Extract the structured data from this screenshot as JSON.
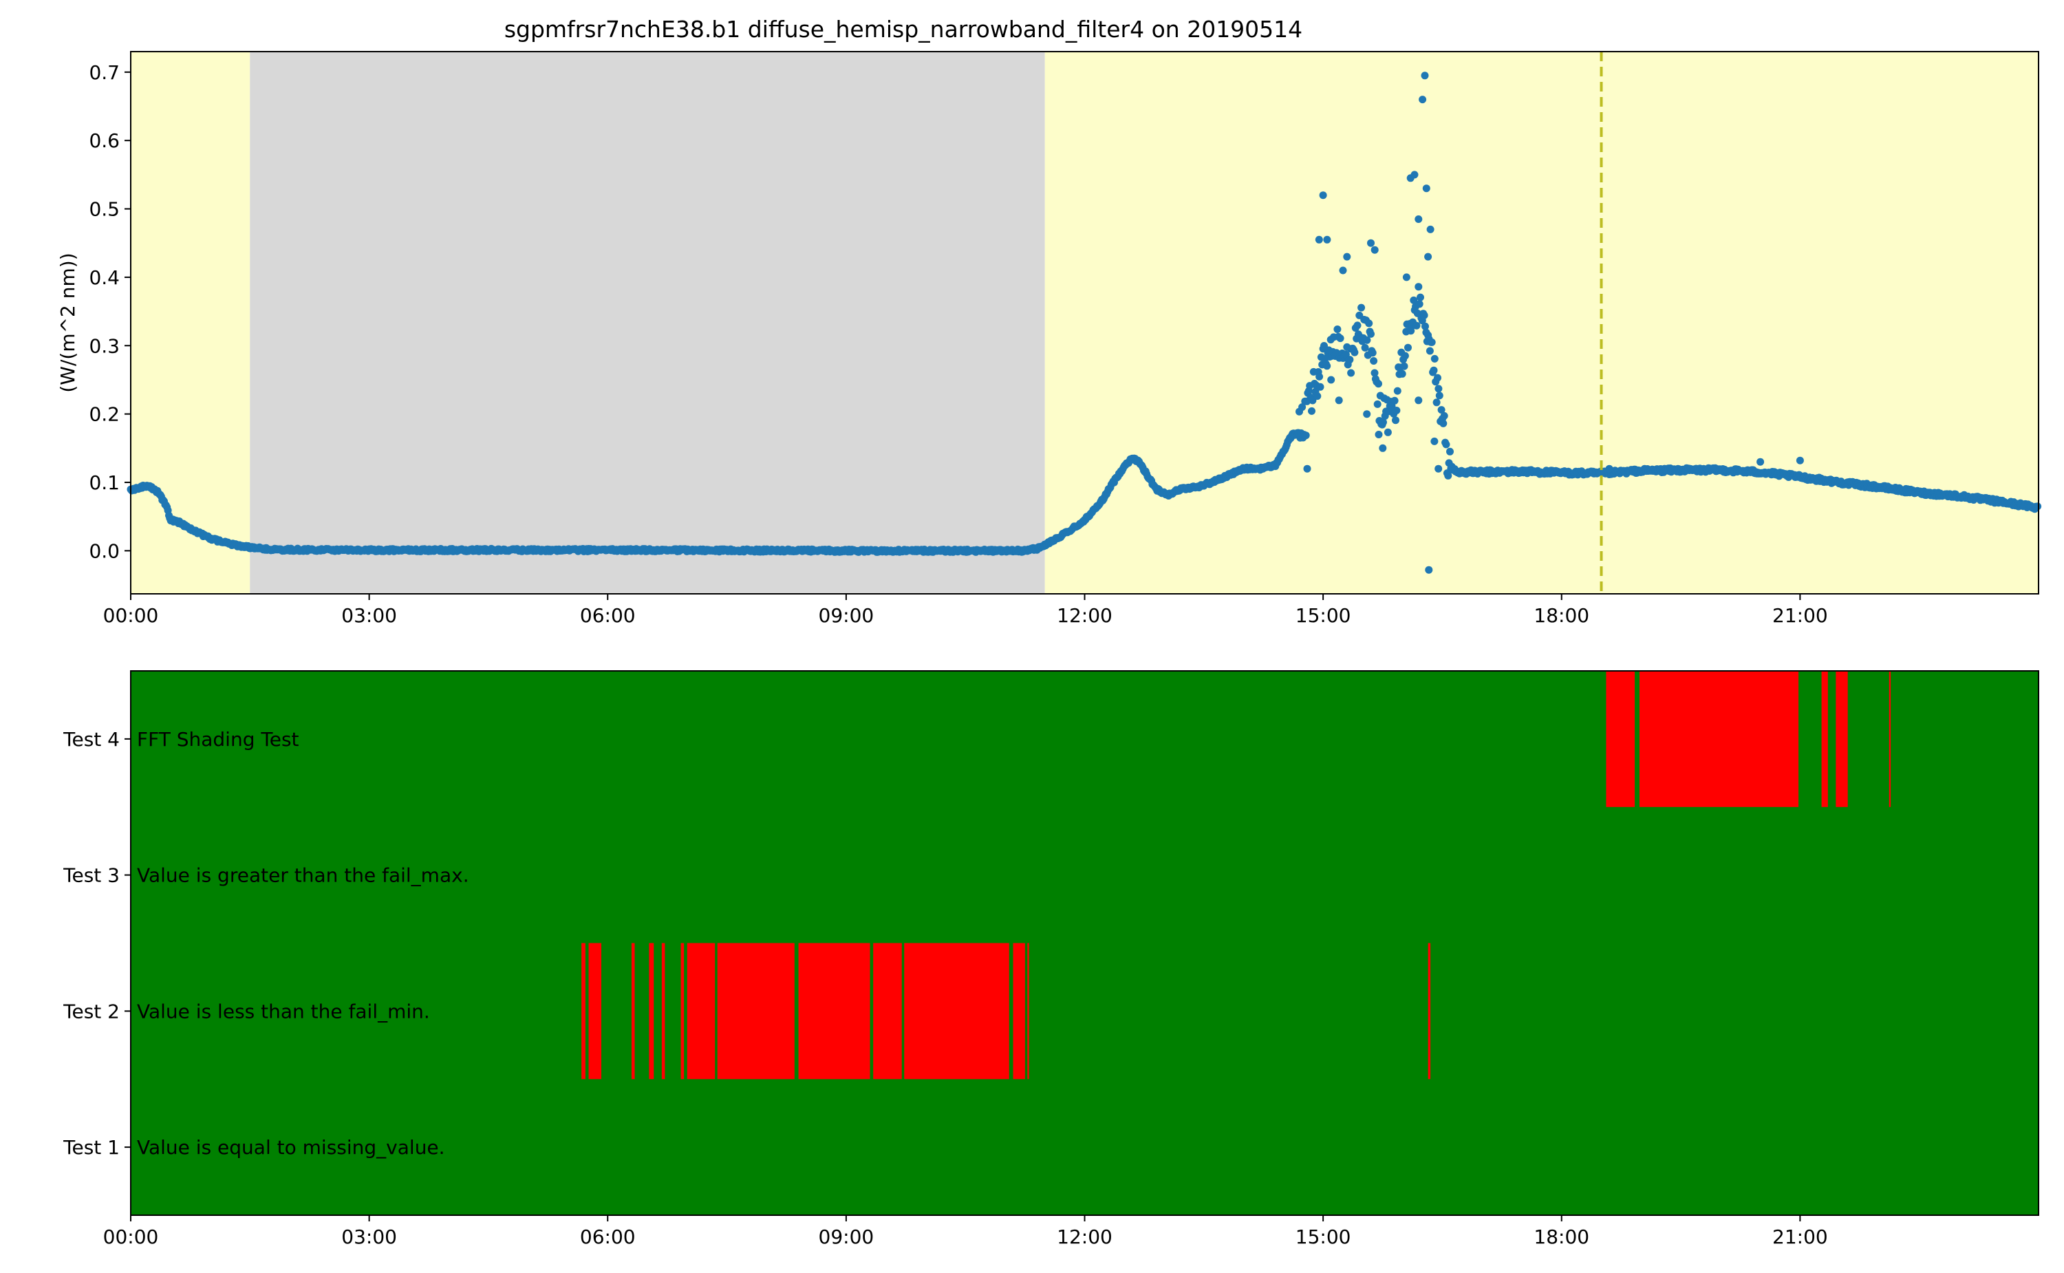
{
  "chart_data": [
    {
      "type": "scatter",
      "title": "sgpmfrsr7nchE38.b1 diffuse_hemisp_narrowband_filter4 on 20190514",
      "xlabel": "",
      "ylabel": "(W/(m^2 nm))",
      "x_units": "hours since 00:00 UTC, 2019-05-14",
      "xlim": [
        0,
        24
      ],
      "ylim": [
        -0.063,
        0.73
      ],
      "x_ticks": [
        "00:00",
        "03:00",
        "06:00",
        "09:00",
        "12:00",
        "15:00",
        "18:00",
        "21:00"
      ],
      "y_ticks": [
        "0.0",
        "0.1",
        "0.2",
        "0.3",
        "0.4",
        "0.5",
        "0.6",
        "0.7"
      ],
      "point_color": "#1f77b4",
      "background_regions": [
        {
          "start": 0.0,
          "end": 1.5,
          "color": "#fdfdca"
        },
        {
          "start": 1.5,
          "end": 11.5,
          "color": "#d8d8d8"
        },
        {
          "start": 11.5,
          "end": 24.0,
          "color": "#fdfdca"
        }
      ],
      "vline": {
        "x": 18.5,
        "color": "#bcbd22",
        "style": "dashed"
      },
      "series_trace": [
        [
          0.0,
          0.088
        ],
        [
          0.15,
          0.094
        ],
        [
          0.25,
          0.093
        ],
        [
          0.35,
          0.085
        ],
        [
          0.45,
          0.065
        ],
        [
          0.5,
          0.045
        ],
        [
          0.6,
          0.042
        ],
        [
          0.75,
          0.032
        ],
        [
          1.0,
          0.018
        ],
        [
          1.25,
          0.01
        ],
        [
          1.5,
          0.005
        ],
        [
          1.75,
          0.002
        ],
        [
          2.5,
          0.001
        ],
        [
          6.0,
          0.001
        ],
        [
          9.0,
          0.0
        ],
        [
          11.2,
          0.0
        ],
        [
          11.4,
          0.003
        ],
        [
          11.6,
          0.015
        ],
        [
          11.8,
          0.028
        ],
        [
          12.0,
          0.045
        ],
        [
          12.2,
          0.07
        ],
        [
          12.35,
          0.098
        ],
        [
          12.5,
          0.124
        ],
        [
          12.6,
          0.136
        ],
        [
          12.7,
          0.128
        ],
        [
          12.8,
          0.108
        ],
        [
          12.9,
          0.09
        ],
        [
          13.05,
          0.082
        ],
        [
          13.2,
          0.09
        ],
        [
          13.4,
          0.093
        ],
        [
          13.6,
          0.1
        ],
        [
          13.8,
          0.11
        ],
        [
          14.0,
          0.12
        ],
        [
          14.2,
          0.12
        ],
        [
          14.4,
          0.125
        ],
        [
          14.5,
          0.145
        ],
        [
          14.6,
          0.168
        ],
        [
          14.7,
          0.175
        ],
        [
          14.8,
          0.2
        ],
        [
          14.9,
          0.24
        ],
        [
          15.0,
          0.27
        ],
        [
          15.1,
          0.3
        ],
        [
          15.2,
          0.31
        ],
        [
          15.3,
          0.29
        ],
        [
          15.4,
          0.32
        ],
        [
          15.5,
          0.33
        ],
        [
          15.6,
          0.3
        ],
        [
          15.7,
          0.22
        ],
        [
          15.8,
          0.19
        ],
        [
          15.9,
          0.21
        ],
        [
          16.0,
          0.28
        ],
        [
          16.1,
          0.33
        ],
        [
          16.2,
          0.36
        ],
        [
          16.3,
          0.32
        ],
        [
          16.4,
          0.26
        ],
        [
          16.5,
          0.2
        ],
        [
          16.55,
          0.14
        ],
        [
          16.6,
          0.122
        ],
        [
          16.7,
          0.115
        ],
        [
          17.0,
          0.115
        ],
        [
          17.5,
          0.116
        ],
        [
          18.0,
          0.114
        ],
        [
          18.5,
          0.113
        ],
        [
          19.0,
          0.117
        ],
        [
          19.5,
          0.118
        ],
        [
          20.0,
          0.118
        ],
        [
          20.5,
          0.115
        ],
        [
          21.0,
          0.108
        ],
        [
          21.5,
          0.1
        ],
        [
          22.0,
          0.093
        ],
        [
          22.5,
          0.085
        ],
        [
          23.0,
          0.08
        ],
        [
          23.5,
          0.072
        ],
        [
          24.0,
          0.063
        ]
      ],
      "outliers": [
        [
          14.8,
          0.12
        ],
        [
          15.0,
          0.52
        ],
        [
          14.95,
          0.455
        ],
        [
          15.05,
          0.455
        ],
        [
          15.25,
          0.41
        ],
        [
          15.3,
          0.43
        ],
        [
          15.1,
          0.25
        ],
        [
          15.2,
          0.22
        ],
        [
          15.35,
          0.26
        ],
        [
          15.6,
          0.45
        ],
        [
          15.65,
          0.44
        ],
        [
          15.7,
          0.17
        ],
        [
          15.75,
          0.15
        ],
        [
          15.55,
          0.2
        ],
        [
          16.1,
          0.545
        ],
        [
          16.15,
          0.55
        ],
        [
          16.2,
          0.485
        ],
        [
          16.25,
          0.66
        ],
        [
          16.28,
          0.695
        ],
        [
          16.3,
          0.53
        ],
        [
          16.35,
          0.47
        ],
        [
          16.32,
          0.43
        ],
        [
          16.4,
          0.16
        ],
        [
          16.45,
          0.12
        ],
        [
          16.33,
          -0.028
        ],
        [
          16.2,
          0.22
        ],
        [
          16.05,
          0.4
        ],
        [
          20.5,
          0.13
        ],
        [
          21.0,
          0.132
        ],
        [
          18.6,
          0.12
        ]
      ]
    },
    {
      "type": "heatmap",
      "xlim": [
        0,
        24
      ],
      "x_ticks": [
        "00:00",
        "03:00",
        "06:00",
        "09:00",
        "12:00",
        "15:00",
        "18:00",
        "21:00"
      ],
      "pass_color": "#008000",
      "fail_color": "#ff0000",
      "rows": [
        {
          "label": "Test 4",
          "description": "FFT Shading Test",
          "fail_intervals": [
            [
              18.56,
              18.92
            ],
            [
              18.98,
              20.98
            ],
            [
              21.27,
              21.35
            ],
            [
              21.45,
              21.6
            ],
            [
              22.12,
              22.14
            ]
          ]
        },
        {
          "label": "Test 3",
          "description": "Value is greater than the fail_max.",
          "fail_intervals": []
        },
        {
          "label": "Test 2",
          "description": "Value is less than the fail_min.",
          "fail_intervals": [
            [
              5.67,
              5.72
            ],
            [
              5.76,
              5.92
            ],
            [
              6.3,
              6.34
            ],
            [
              6.52,
              6.58
            ],
            [
              6.68,
              6.72
            ],
            [
              6.92,
              6.96
            ],
            [
              7.0,
              7.35
            ],
            [
              7.38,
              8.35
            ],
            [
              8.4,
              9.3
            ],
            [
              9.34,
              9.7
            ],
            [
              9.73,
              11.05
            ],
            [
              11.1,
              11.25
            ],
            [
              11.28,
              11.3
            ],
            [
              16.32,
              16.35
            ]
          ]
        },
        {
          "label": "Test 1",
          "description": "Value is equal to missing_value.",
          "fail_intervals": []
        }
      ]
    }
  ]
}
